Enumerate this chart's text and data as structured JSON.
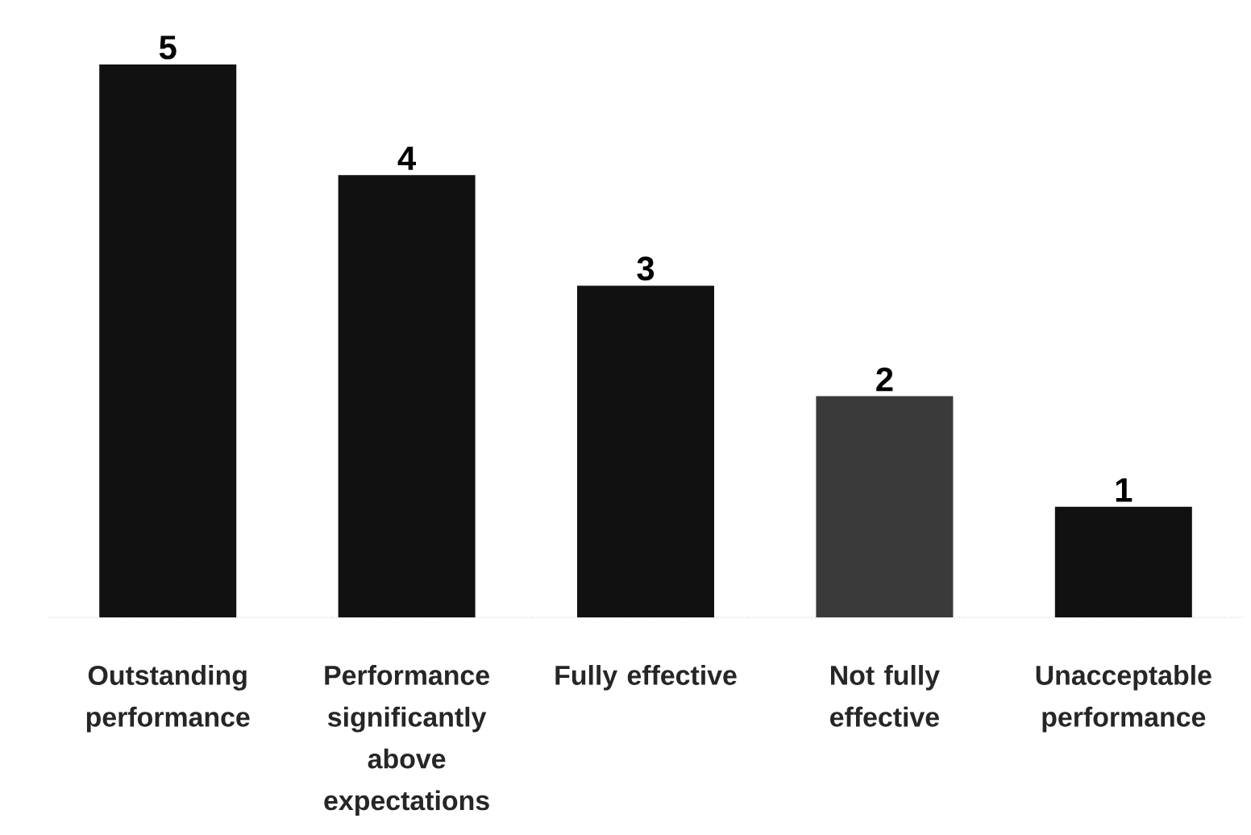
{
  "chart_data": {
    "type": "bar",
    "categories": [
      "Outstanding performance",
      "Performance significantly above expectations",
      "Fully effective",
      "Not fully effective",
      "Unacceptable performance"
    ],
    "values": [
      5,
      4,
      3,
      2,
      1
    ],
    "colors": [
      "#111111",
      "#111111",
      "#111111",
      "#3a3a3a",
      "#111111"
    ],
    "data_labels": true
  }
}
